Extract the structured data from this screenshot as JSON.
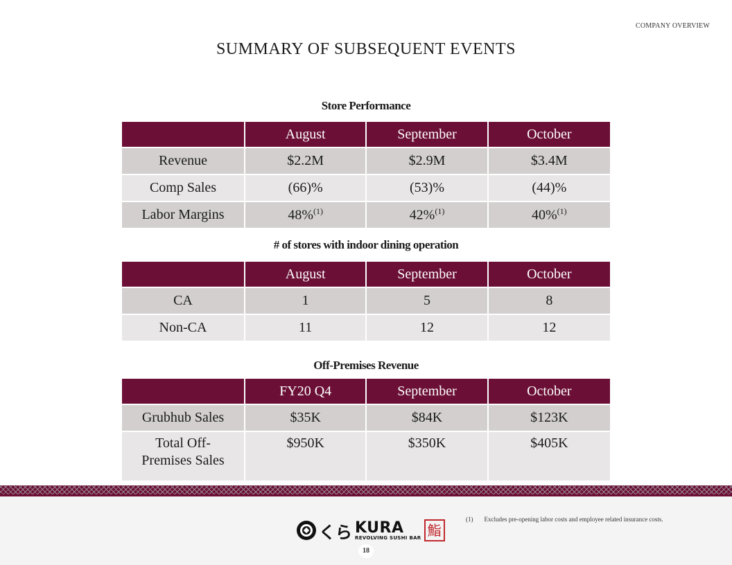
{
  "header": {
    "section_label": "COMPANY OVERVIEW",
    "title": "SUMMARY OF SUBSEQUENT EVENTS"
  },
  "store_performance": {
    "caption": "Store Performance",
    "columns": [
      "",
      "August",
      "September",
      "October"
    ],
    "rows": [
      {
        "label": "Revenue",
        "values": [
          "$2.2M",
          "$2.9M",
          "$3.4M"
        ]
      },
      {
        "label": "Comp Sales",
        "values": [
          "(66)%",
          "(53)%",
          "(44)%"
        ]
      },
      {
        "label": "Labor Margins",
        "values": [
          "48%",
          "42%",
          "40%"
        ],
        "note_marker": "(1)"
      }
    ]
  },
  "indoor_dining": {
    "caption": "# of stores with indoor dining operation",
    "columns": [
      "",
      "August",
      "September",
      "October"
    ],
    "rows": [
      {
        "label": "CA",
        "values": [
          "1",
          "5",
          "8"
        ]
      },
      {
        "label": "Non-CA",
        "values": [
          "11",
          "12",
          "12"
        ]
      }
    ]
  },
  "off_premises": {
    "caption": "Off-Premises Revenue",
    "columns": [
      "",
      "FY20 Q4",
      "September",
      "October"
    ],
    "rows": [
      {
        "label": "Grubhub Sales",
        "values": [
          "$35K",
          "$84K",
          "$123K"
        ]
      },
      {
        "label": "Total Off-Premises Sales",
        "values": [
          "$950K",
          "$350K",
          "$405K"
        ]
      }
    ]
  },
  "footer": {
    "logo": {
      "kana": "くら",
      "name": "KURA",
      "tagline": "REVOLVING SUSHI BAR",
      "seal": "鮨"
    },
    "footnote_marker": "(1)",
    "footnote_text": "Excludes pre-opening labor costs and employee related insurance costs.",
    "page_number": "18"
  },
  "colors": {
    "accent": "#6b0f36",
    "row_dark": "#d3cfcf",
    "row_light": "#e9e6e7"
  }
}
